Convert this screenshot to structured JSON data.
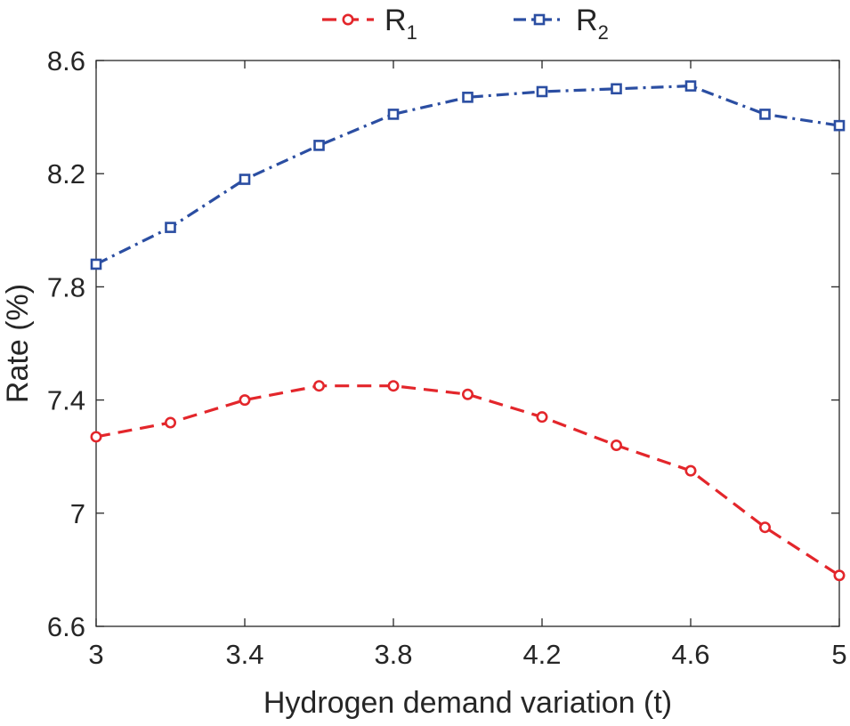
{
  "chart_data": {
    "type": "line",
    "title": "",
    "xlabel": "Hydrogen demand variation (t)",
    "ylabel": "Rate (%)",
    "xlim": [
      3,
      5
    ],
    "ylim": [
      6.6,
      8.6
    ],
    "xticks": [
      3,
      3.4,
      3.8,
      4.2,
      4.6,
      5
    ],
    "xtick_labels": [
      "3",
      "3.4",
      "3.8",
      "4.2",
      "4.6",
      "5"
    ],
    "yticks": [
      6.6,
      7,
      7.4,
      7.8,
      8.2,
      8.6
    ],
    "ytick_labels": [
      "6.6",
      "7",
      "7.4",
      "7.8",
      "8.2",
      "8.6"
    ],
    "grid": false,
    "legend_position": "top",
    "x": [
      3.0,
      3.2,
      3.4,
      3.6,
      3.8,
      4.0,
      4.2,
      4.4,
      4.6,
      4.8,
      5.0
    ],
    "series": [
      {
        "name": "R",
        "subscript": "1",
        "color": "#e3262b",
        "line_style": "dashed",
        "marker": "circle",
        "values": [
          7.27,
          7.32,
          7.4,
          7.45,
          7.45,
          7.42,
          7.34,
          7.24,
          7.15,
          6.95,
          6.78
        ]
      },
      {
        "name": "R",
        "subscript": "2",
        "color": "#2b4ea2",
        "line_style": "dash-dot",
        "marker": "square",
        "values": [
          7.88,
          8.01,
          8.18,
          8.3,
          8.41,
          8.47,
          8.49,
          8.5,
          8.51,
          8.41,
          8.37
        ]
      }
    ]
  }
}
